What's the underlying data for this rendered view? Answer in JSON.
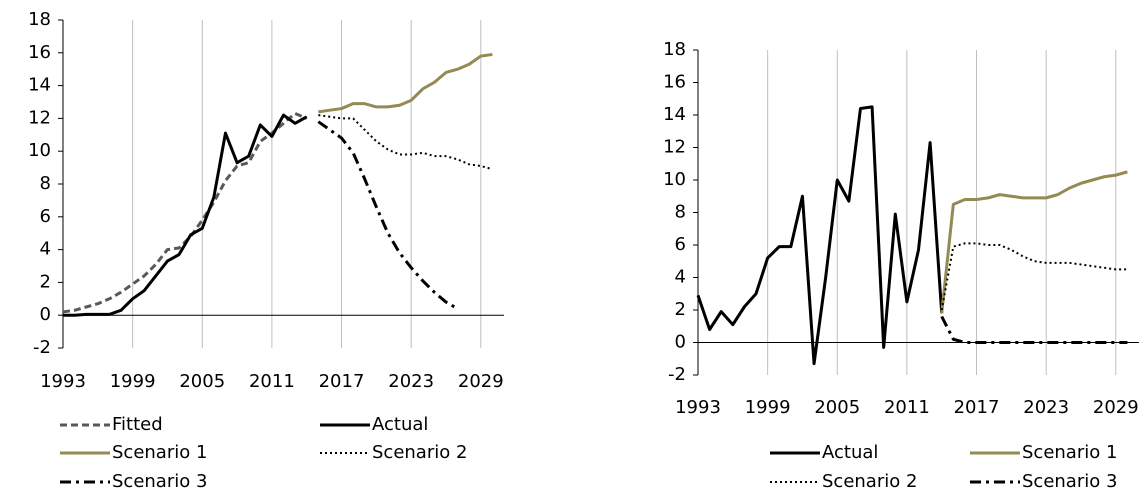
{
  "chart_data": [
    {
      "type": "line",
      "x": [
        1993,
        1994,
        1995,
        1996,
        1997,
        1998,
        1999,
        2000,
        2001,
        2002,
        2003,
        2004,
        2005,
        2006,
        2007,
        2008,
        2009,
        2010,
        2011,
        2012,
        2013,
        2014,
        2015,
        2016,
        2017,
        2018,
        2019,
        2020,
        2021,
        2022,
        2023,
        2024,
        2025,
        2026,
        2027,
        2028,
        2029,
        2030
      ],
      "xlim": [
        1993,
        2031
      ],
      "xticks": [
        1993,
        1999,
        2005,
        2011,
        2017,
        2023,
        2029
      ],
      "ylim": [
        -2,
        18
      ],
      "yticks": [
        -2,
        0,
        2,
        4,
        6,
        8,
        10,
        12,
        14,
        16,
        18
      ],
      "grid": true,
      "series": [
        {
          "name": "Fitted",
          "color": "#595959",
          "dash": "dashed",
          "values": [
            0.2,
            0.3,
            0.5,
            0.7,
            1.0,
            1.4,
            1.9,
            2.4,
            3.1,
            4.0,
            4.1,
            4.8,
            5.8,
            6.9,
            8.2,
            9.1,
            9.3,
            10.6,
            11.1,
            11.7,
            12.3,
            12.0,
            null,
            null,
            null,
            null,
            null,
            null,
            null,
            null,
            null,
            null,
            null,
            null,
            null,
            null,
            null,
            null
          ]
        },
        {
          "name": "Actual",
          "color": "#000000",
          "dash": "solid",
          "values": [
            0,
            0,
            0.05,
            0.05,
            0.05,
            0.3,
            1.0,
            1.5,
            2.4,
            3.3,
            3.7,
            4.9,
            5.3,
            7.2,
            11.1,
            9.3,
            9.7,
            11.6,
            10.9,
            12.2,
            11.7,
            12.1,
            null,
            null,
            null,
            null,
            null,
            null,
            null,
            null,
            null,
            null,
            null,
            null,
            null,
            null,
            null,
            null
          ]
        },
        {
          "name": "Scenario 1",
          "color": "#948a54",
          "dash": "solid",
          "values": [
            null,
            null,
            null,
            null,
            null,
            null,
            null,
            null,
            null,
            null,
            null,
            null,
            null,
            null,
            null,
            null,
            null,
            null,
            null,
            null,
            null,
            null,
            12.4,
            12.5,
            12.6,
            12.9,
            12.9,
            12.7,
            12.7,
            12.8,
            13.1,
            13.8,
            14.2,
            14.8,
            15.0,
            15.3,
            15.8,
            15.9
          ]
        },
        {
          "name": "Scenario 2",
          "color": "#000000",
          "dash": "dotted",
          "values": [
            null,
            null,
            null,
            null,
            null,
            null,
            null,
            null,
            null,
            null,
            null,
            null,
            null,
            null,
            null,
            null,
            null,
            null,
            null,
            null,
            null,
            null,
            12.2,
            12.1,
            12.0,
            12.0,
            11.3,
            10.6,
            10.1,
            9.8,
            9.8,
            9.9,
            9.7,
            9.7,
            9.5,
            9.2,
            9.1,
            8.9
          ]
        },
        {
          "name": "Scenario 3",
          "color": "#000000",
          "dash": "dashdot",
          "values": [
            null,
            null,
            null,
            null,
            null,
            null,
            null,
            null,
            null,
            null,
            null,
            null,
            null,
            null,
            null,
            null,
            null,
            null,
            null,
            null,
            null,
            null,
            11.8,
            11.3,
            10.8,
            9.9,
            8.3,
            6.6,
            5.0,
            3.8,
            2.9,
            2.1,
            1.4,
            0.8,
            0.4,
            null,
            null,
            null
          ]
        }
      ]
    },
    {
      "type": "line",
      "x": [
        1993,
        1994,
        1995,
        1996,
        1997,
        1998,
        1999,
        2000,
        2001,
        2002,
        2003,
        2004,
        2005,
        2006,
        2007,
        2008,
        2009,
        2010,
        2011,
        2012,
        2013,
        2014,
        2015,
        2016,
        2017,
        2018,
        2019,
        2020,
        2021,
        2022,
        2023,
        2024,
        2025,
        2026,
        2027,
        2028,
        2029,
        2030
      ],
      "xlim": [
        1993,
        2031
      ],
      "xticks": [
        1993,
        1999,
        2005,
        2011,
        2017,
        2023,
        2029
      ],
      "ylim": [
        -2,
        18
      ],
      "yticks": [
        -2,
        0,
        2,
        4,
        6,
        8,
        10,
        12,
        14,
        16,
        18
      ],
      "grid": true,
      "series": [
        {
          "name": "Actual",
          "color": "#000000",
          "dash": "solid",
          "values": [
            2.9,
            0.8,
            1.9,
            1.1,
            2.2,
            3.0,
            5.2,
            5.9,
            5.9,
            9.0,
            -1.3,
            4.0,
            10.0,
            8.7,
            14.4,
            14.5,
            -0.3,
            7.9,
            2.5,
            5.7,
            12.3,
            1.8,
            null,
            null,
            null,
            null,
            null,
            null,
            null,
            null,
            null,
            null,
            null,
            null,
            null,
            null,
            null,
            null
          ]
        },
        {
          "name": "Scenario 1",
          "color": "#948a54",
          "dash": "solid",
          "values": [
            null,
            null,
            null,
            null,
            null,
            null,
            null,
            null,
            null,
            null,
            null,
            null,
            null,
            null,
            null,
            null,
            null,
            null,
            null,
            null,
            null,
            1.8,
            8.5,
            8.8,
            8.8,
            8.9,
            9.1,
            9.0,
            8.9,
            8.9,
            8.9,
            9.1,
            9.5,
            9.8,
            10.0,
            10.2,
            10.3,
            10.5
          ]
        },
        {
          "name": "Scenario 2",
          "color": "#000000",
          "dash": "dotted",
          "values": [
            null,
            null,
            null,
            null,
            null,
            null,
            null,
            null,
            null,
            null,
            null,
            null,
            null,
            null,
            null,
            null,
            null,
            null,
            null,
            null,
            null,
            2.0,
            5.9,
            6.1,
            6.1,
            6.0,
            6.0,
            5.7,
            5.3,
            5.0,
            4.9,
            4.9,
            4.9,
            4.8,
            4.7,
            4.6,
            4.5,
            4.5
          ]
        },
        {
          "name": "Scenario 3",
          "color": "#000000",
          "dash": "dashdot",
          "values": [
            null,
            null,
            null,
            null,
            null,
            null,
            null,
            null,
            null,
            null,
            null,
            null,
            null,
            null,
            null,
            null,
            null,
            null,
            null,
            null,
            null,
            1.6,
            0.2,
            0,
            0,
            0,
            0,
            0,
            0,
            0,
            0,
            0,
            0,
            0,
            0,
            0,
            0,
            0
          ]
        }
      ]
    }
  ]
}
